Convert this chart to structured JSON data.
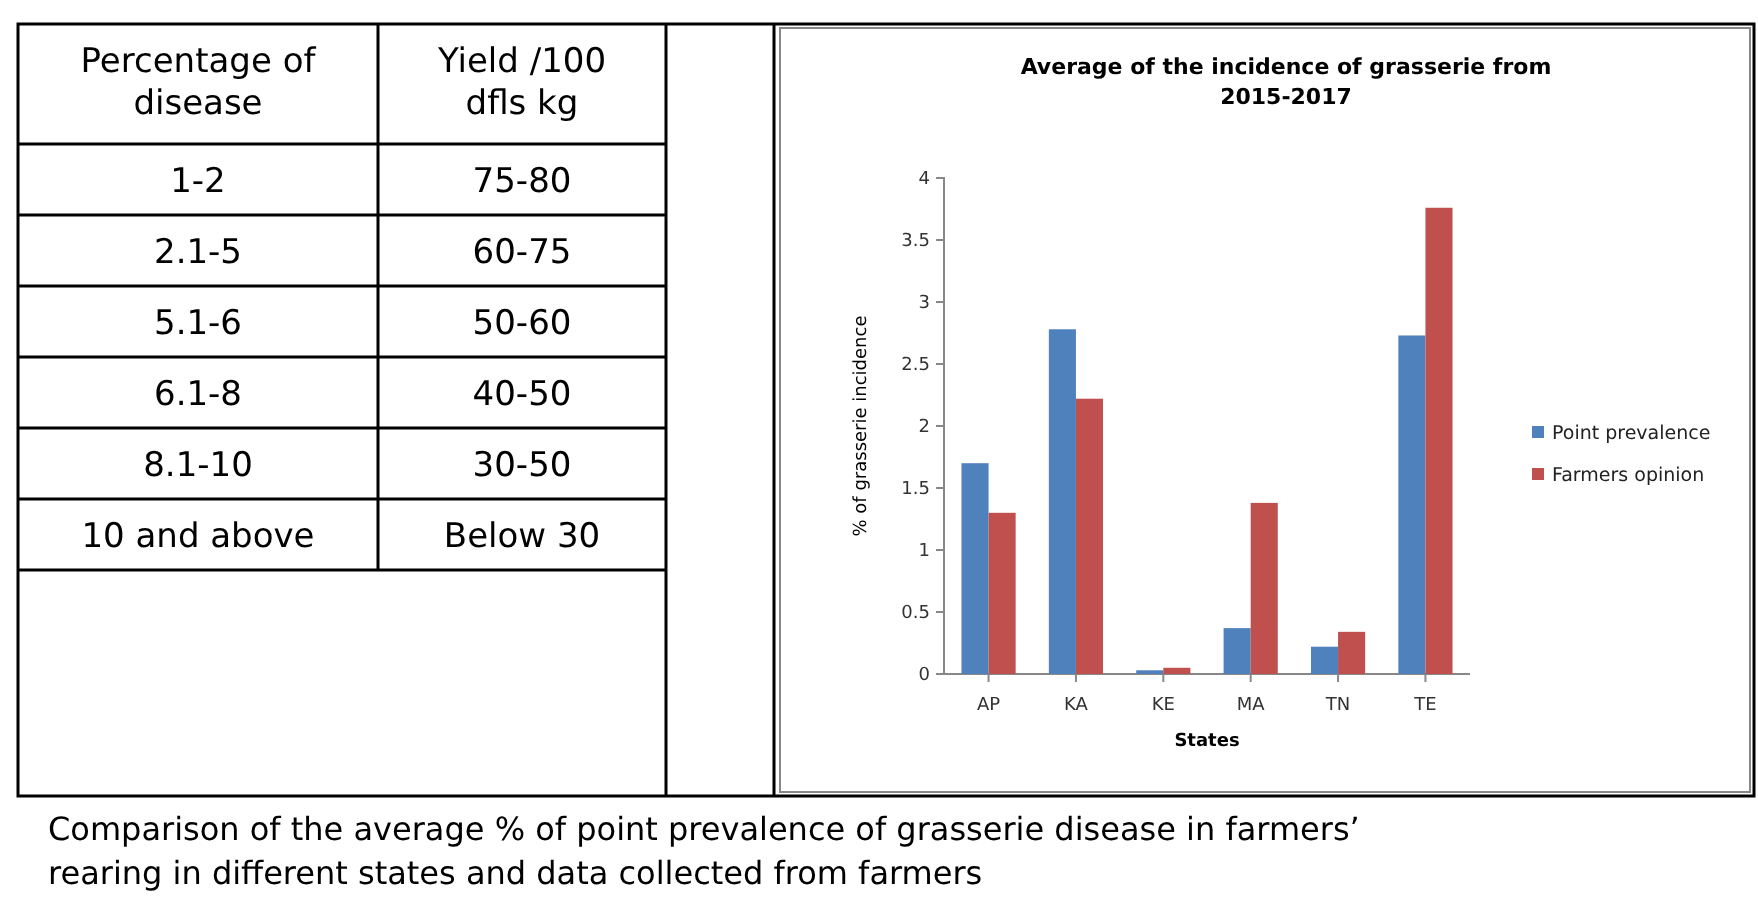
{
  "chart_data": [
    {
      "type": "other",
      "annotations": [
        "Percentage of disease",
        "Yield /100 dfls kg",
        "1-2",
        "75-80",
        "2.1-5",
        "60-75",
        "5.1-6",
        "50-60",
        "6.1-8",
        "40-50",
        "8.1-10",
        "30-50",
        "10 and above",
        "Below 30"
      ]
    },
    {
      "type": "bar",
      "title": "Average of the incidence of grasserie from 2015-2017",
      "xlabel": "States",
      "ylabel": "% of grasserie incidence",
      "categories": [
        "AP",
        "KA",
        "KE",
        "MA",
        "TN",
        "TE"
      ],
      "series": [
        {
          "name": "Point prevalence",
          "color": "#4f81bd",
          "values": [
            1.7,
            2.78,
            0.03,
            0.37,
            0.22,
            2.73
          ]
        },
        {
          "name": "Farmers opinion",
          "color": "#c0504d",
          "values": [
            1.3,
            2.22,
            0.05,
            1.38,
            0.34,
            3.76
          ]
        }
      ],
      "ylim": [
        0,
        4
      ],
      "yticks": [
        0,
        0.5,
        1,
        1.5,
        2,
        2.5,
        3,
        3.5,
        4
      ],
      "legend": "right",
      "annotations": [
        "Comparison of the average % of point prevalence of grasserie disease in farmers’ rearing in different states and data collected from farmers"
      ]
    }
  ]
}
